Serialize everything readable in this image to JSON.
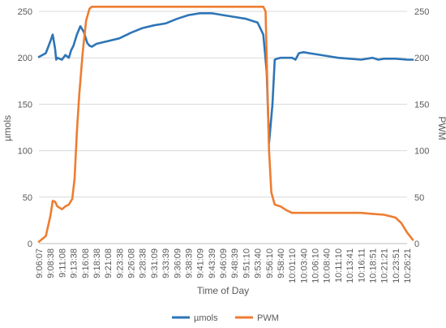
{
  "chart_data": {
    "type": "line",
    "title": "",
    "xlabel": "Time of Day",
    "ylabel_left": "µmols",
    "ylabel_right": "PWM",
    "ylim_left": [
      0,
      250
    ],
    "ylim_right": [
      0,
      250
    ],
    "yticks_left": [
      0,
      50,
      100,
      150,
      200,
      250
    ],
    "yticks_right": [
      0,
      50,
      100,
      150,
      200,
      250
    ],
    "grid": true,
    "legend_position": "bottom",
    "x_tick_labels": [
      "9:06:07",
      "9:08:38",
      "9:11:08",
      "9:13:38",
      "9:16:08",
      "9:18:38",
      "9:21:08",
      "9:23:38",
      "9:26:08",
      "9:28:38",
      "9:31:09",
      "9:33:39",
      "9:36:09",
      "9:38:39",
      "9:41:09",
      "9:43:39",
      "9:46:09",
      "9:48:39",
      "9:51:10",
      "9:53:40",
      "9:56:10",
      "9:58:40",
      "10:01:10",
      "10:03:40",
      "10:06:10",
      "10:08:40",
      "10:11:10",
      "10:13:41",
      "10:16:11",
      "10:18:51",
      "10:21:21",
      "10:23:51",
      "10:26:21"
    ],
    "series": [
      {
        "name": "µmols",
        "axis": "left",
        "color": "#2e75b6",
        "x": [
          0,
          0.6,
          1.0,
          1.2,
          1.4,
          1.5,
          1.6,
          2.0,
          2.3,
          2.6,
          2.8,
          3.0,
          3.3,
          3.6,
          3.9,
          4.2,
          4.4,
          4.6,
          5,
          6,
          7,
          8,
          9,
          10,
          11,
          12,
          13,
          14,
          15,
          15.5,
          16,
          17,
          18,
          19,
          19.5,
          19.8,
          20.0,
          20.3,
          20.5,
          20.7,
          21.0,
          21.5,
          22.0,
          22.3,
          22.6,
          23,
          24,
          25,
          26,
          27,
          28,
          29,
          29.5,
          30,
          31,
          32,
          32.5
        ],
        "y": [
          201,
          205,
          218,
          225,
          210,
          198,
          200,
          198,
          203,
          200,
          208,
          213,
          225,
          234,
          228,
          216,
          213,
          212,
          215,
          218,
          221,
          227,
          232,
          235,
          237,
          242,
          246,
          248,
          248,
          247,
          246,
          244,
          242,
          238,
          225,
          185,
          108,
          150,
          198,
          199,
          200,
          200,
          200,
          198,
          205,
          206,
          204,
          202,
          200,
          199,
          198,
          200,
          198,
          199,
          199,
          198,
          198
        ]
      },
      {
        "name": "PWM",
        "axis": "right",
        "color": "#ed7d31",
        "x": [
          0,
          0.6,
          1.0,
          1.2,
          1.4,
          1.6,
          2.0,
          2.3,
          2.6,
          2.9,
          3.1,
          3.3,
          3.5,
          3.8,
          4.1,
          4.4,
          4.6,
          4.8,
          5,
          10,
          15,
          19.5,
          19.7,
          19.9,
          20.0,
          20.2,
          20.5,
          21.0,
          21.5,
          22.0,
          23,
          25,
          28,
          29,
          30,
          31,
          31.5,
          32,
          32.5
        ],
        "y": [
          2,
          8,
          30,
          46,
          45,
          40,
          37,
          40,
          42,
          48,
          70,
          120,
          160,
          205,
          240,
          253,
          255,
          255,
          255,
          255,
          255,
          255,
          250,
          150,
          100,
          55,
          42,
          40,
          36,
          33,
          33,
          33,
          33,
          32,
          31,
          28,
          22,
          12,
          4
        ]
      }
    ]
  }
}
